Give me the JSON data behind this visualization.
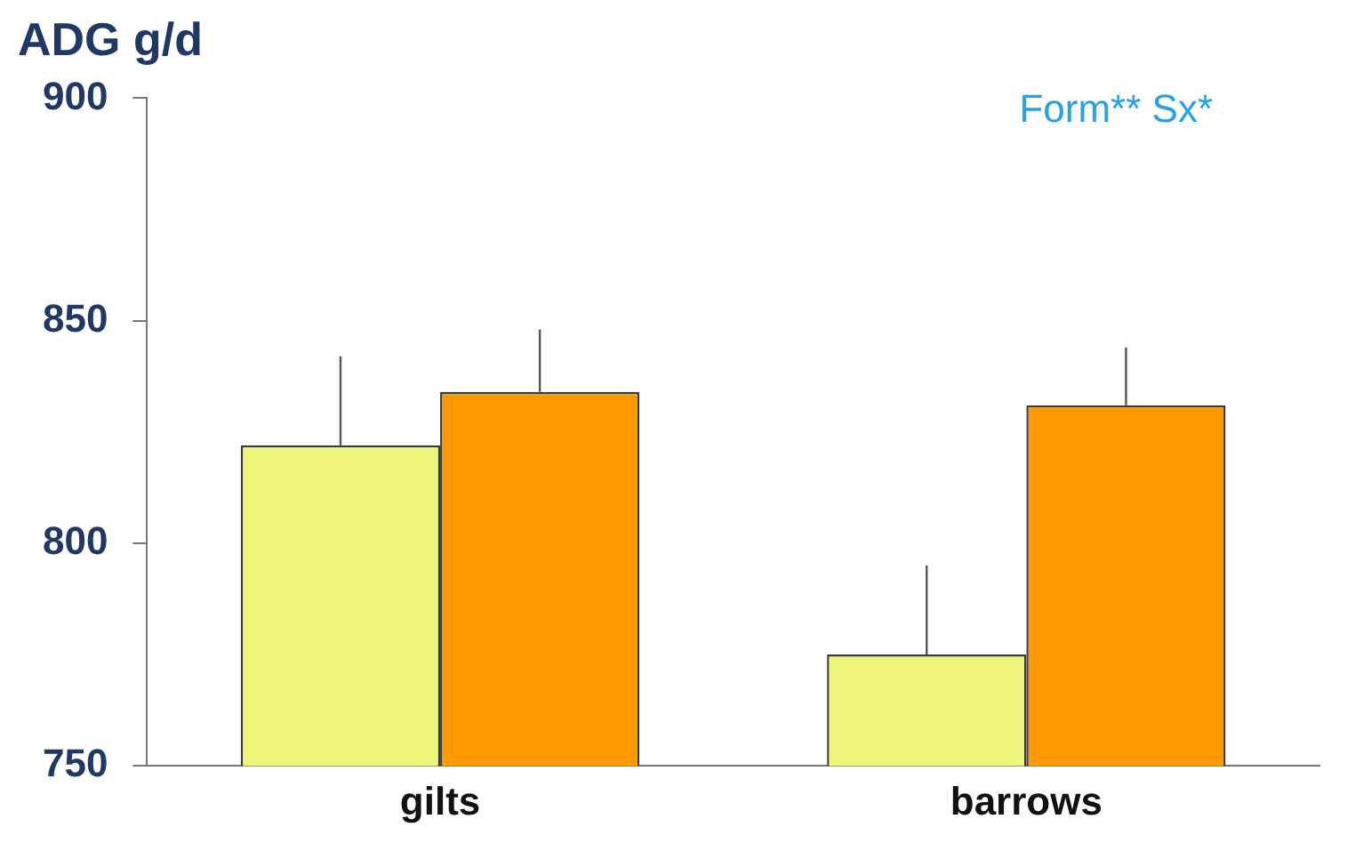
{
  "chart_data": {
    "type": "bar",
    "title": "ADG g/d",
    "categories": [
      "gilts",
      "barrows"
    ],
    "series": [
      {
        "color": "#eef57a",
        "values": [
          822,
          775
        ],
        "errors": [
          [
            822,
            842
          ],
          [
            775,
            795
          ]
        ]
      },
      {
        "color": "#ff9900",
        "values": [
          834,
          831
        ],
        "errors": [
          [
            834,
            848
          ],
          [
            831,
            844
          ]
        ]
      }
    ],
    "ylim": [
      750,
      900
    ],
    "yticks": [
      750,
      800,
      850,
      900
    ],
    "grid": false,
    "legend": false,
    "annotations": [
      "Form** Sx*"
    ]
  }
}
